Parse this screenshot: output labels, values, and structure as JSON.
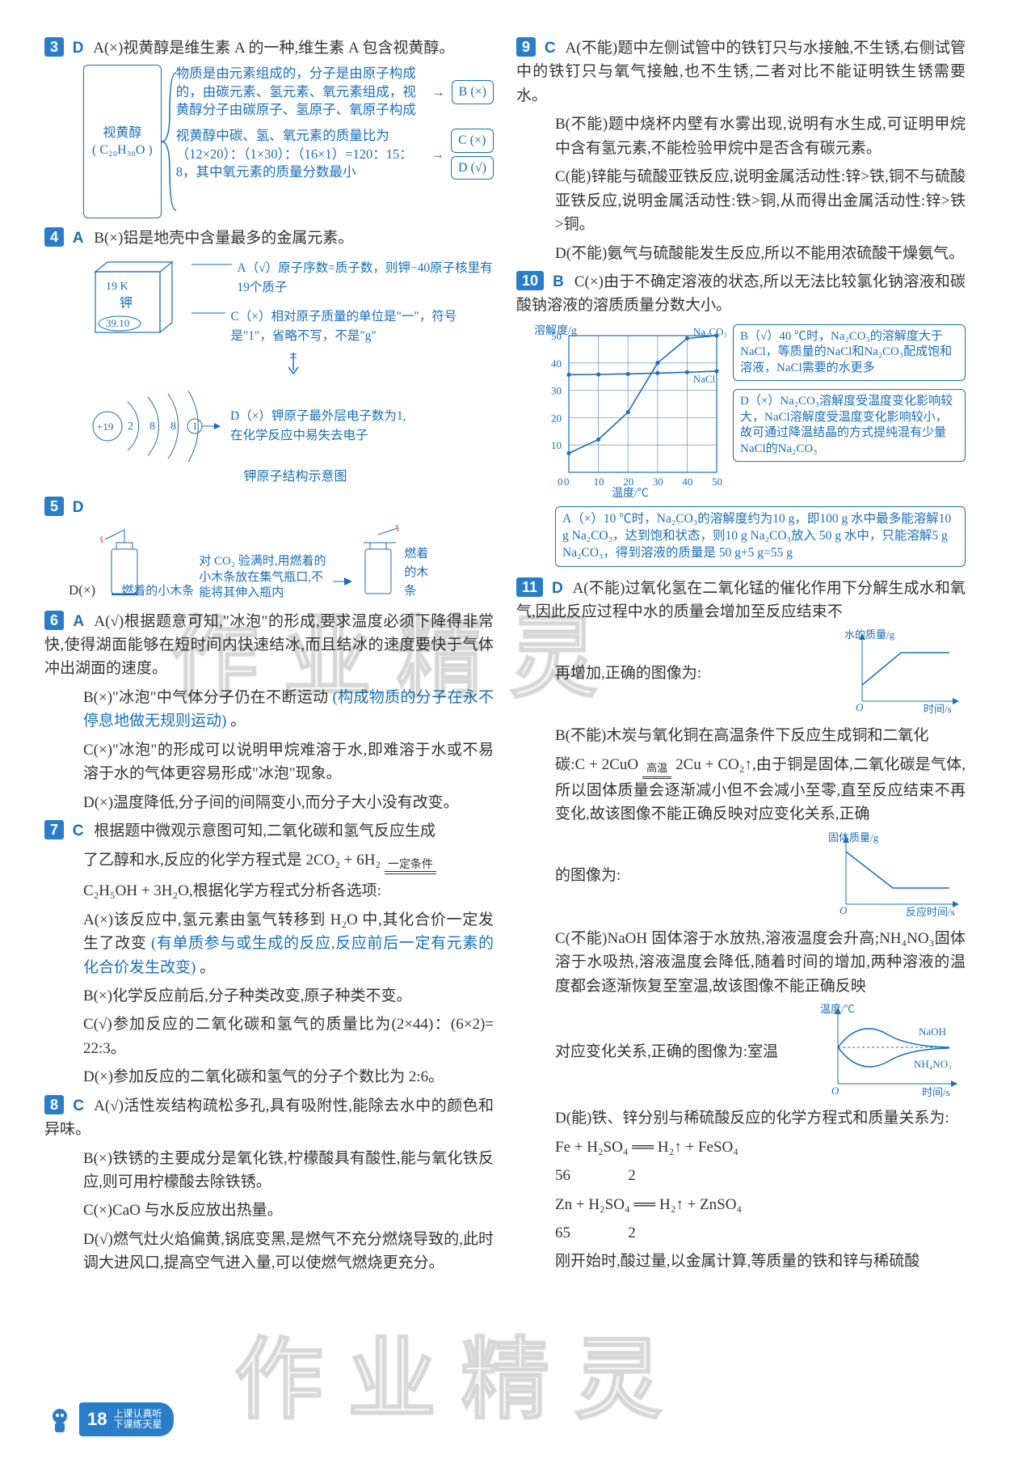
{
  "watermark": "作业精灵",
  "footer": {
    "page": "18",
    "line1": "上课认真听",
    "line2": "下课练天星"
  },
  "left": {
    "q3": {
      "num": "3",
      "ans": "D",
      "head": "A(×)视黄醇是维生素 A 的一种,维生素 A 包含视黄醇。",
      "node_top": "视黄醇",
      "node_bot": "( C₂₀H₃₀O )",
      "r1": "物质是由元素组成的，分子是由原子构成的，由碳元素、氢元素、氧元素组成，视黄醇分子由碳原子、氢原子、氧原子构成",
      "r1res": "B (×)",
      "r2": "视黄醇中碳、氢、氧元素的质量比为（12×20）：（1×30）：（16×1）=120：15：8，其中氧元素的质量分数最小",
      "r2res1": "C (×)",
      "r2res2": "D (√)"
    },
    "q4": {
      "num": "4",
      "ans": "A",
      "head": "B(×)铝是地壳中含量最多的金属元素。",
      "cube_top": "19   K",
      "cube_mid": "钾",
      "cube_bot": "39.10",
      "cA": "A（√）原子序数=质子数，则钾−40原子核里有19个质子",
      "cC": "C（×）相对原子质量的单位是\"一\"，符号是\"1\"，省略不写，不是\"g\"",
      "atom_center": "+19",
      "atom_shells": "2  8  8  ①",
      "atom_note": "D（×）钾原子最外层电子数为1,在化学反应中易失去电子",
      "atom_caption": "钾原子结构示意图"
    },
    "q5": {
      "num": "5",
      "ans": "D",
      "label_left": "D(×)",
      "t1": "燃着的小木条",
      "t2": "对 CO₂ 验满时,用燃着的小木条放在集气瓶口,不能将其伸入瓶内",
      "t3": "燃着的木条"
    },
    "q6": {
      "num": "6",
      "ans": "A",
      "a": "A(√)根据题意可知,\"冰泡\"的形成,要求温度必须下降得非常快,使得湖面能够在短时间内快速结冰,而且结冰的速度要快于气体冲出湖面的速度。",
      "b": "B(×)\"冰泡\"中气体分子仍在不断运动",
      "b_hand": "(构成物质的分子在永不停息地做无规则运动)",
      "b_end": "。",
      "c": "C(×)\"冰泡\"的形成可以说明甲烷难溶于水,即难溶于水或不易溶于水的气体更容易形成\"冰泡\"现象。",
      "d": "D(×)温度降低,分子间的间隔变小,而分子大小没有改变。"
    },
    "q7": {
      "num": "7",
      "ans": "C",
      "head": "根据题中微观示意图可知,二氧化碳和氢气反应生成",
      "eq1_l": "了乙醇和水,反应的化学方程式是 2CO₂ + 6H₂",
      "eq1_cond": "一定条件",
      "eq1_r": "C₂H₅OH + 3H₂O,根据化学方程式分析各选项:",
      "a": "A(×)该反应中,氢元素由氢气转移到 H₂O 中,其化合价一定发生了改变",
      "a_hand": "(有单质参与或生成的反应,反应前后一定有元素的化合价发生改变)",
      "a_end": "。",
      "b": "B(×)化学反应前后,分子种类改变,原子种类不变。",
      "c": "C(√)参加反应的二氧化碳和氢气的质量比为(2×44)：(6×2)= 22:3。",
      "d": "D(×)参加反应的二氧化碳和氢气的分子个数比为 2:6。"
    },
    "q8": {
      "num": "8",
      "ans": "C",
      "a": "A(√)活性炭结构疏松多孔,具有吸附性,能除去水中的颜色和异味。",
      "b": "B(×)铁锈的主要成分是氧化铁,柠檬酸具有酸性,能与氧化铁反应,则可用柠檬酸去除铁锈。",
      "c": "C(×)CaO 与水反应放出热量。",
      "d": "D(√)燃气灶火焰偏黄,锅底变黑,是燃气不充分燃烧导致的,此时调大进风口,提高空气进入量,可以使燃气燃烧更充分。"
    }
  },
  "right": {
    "q9": {
      "num": "9",
      "ans": "C",
      "a": "A(不能)题中左侧试管中的铁钉只与水接触,不生锈,右侧试管中的铁钉只与氧气接触,也不生锈,二者对比不能证明铁生锈需要水。",
      "b": "B(不能)题中烧杯内壁有水雾出现,说明有水生成,可证明甲烷中含有氢元素,不能检验甲烷中是否含有碳元素。",
      "c": "C(能)锌能与硫酸亚铁反应,说明金属活动性:锌>铁,铜不与硫酸亚铁反应,说明金属活动性:铁>铜,从而得出金属活动性:锌>铁>铜。",
      "d": "D(不能)氨气与硫酸能发生反应,所以不能用浓硫酸干燥氨气。"
    },
    "q10": {
      "num": "10",
      "ans": "B",
      "head": "C(×)由于不确定溶液的状态,所以无法比较氯化钠溶液和碳酸钠溶液的溶质质量分数大小。",
      "chart": {
        "ylabel": "溶解度/g",
        "xlabel": "温度/℃",
        "ymax": 50,
        "ystep": 10,
        "xmax": 50,
        "xstep": 10,
        "series1_name": "Na₂CO₃",
        "series2_name": "NaCl",
        "grid_color": "#6aa5d8",
        "line_color": "#1a6fb8",
        "s1_pts": [
          [
            0,
            7
          ],
          [
            10,
            12
          ],
          [
            20,
            22
          ],
          [
            30,
            40
          ],
          [
            40,
            49
          ],
          [
            50,
            50
          ]
        ],
        "s2_pts": [
          [
            0,
            35.7
          ],
          [
            10,
            35.8
          ],
          [
            20,
            36
          ],
          [
            30,
            36.3
          ],
          [
            40,
            36.6
          ],
          [
            50,
            37
          ]
        ]
      },
      "nB": "B（√）40 ℃时，Na₂CO₃的溶解度大于 NaCl，等质量的NaCl和Na₂CO₃配成饱和溶液，NaCl需要的水更多",
      "nD": "D（×）Na₂CO₃溶解度受温度变化影响较大，NaCl溶解度受温度变化影响较小，故可通过降温结晶的方式提纯混有少量NaCl的Na₂CO₃",
      "under": "A（×）10 ℃时，Na₂CO₃的溶解度约为10 g，即100 g 水中最多能溶解10 g Na₂CO₃，达到饱和状态，则10 g Na₂CO₃放入 50 g 水中，只能溶解5 g Na₂CO₃，得到溶液的质量是 50 g+5 g=55 g"
    },
    "q11": {
      "num": "11",
      "ans": "D",
      "a": "A(不能)过氧化氢在二氧化锰的催化作用下分解生成水和氧气,因此反应过程中水的质量会增加至反应结束不",
      "a_graph_y": "水的质量/g",
      "a_graph_x": "时间/s",
      "a_after": "再增加,正确的图像为:",
      "b_head": "B(不能)木炭与氧化铜在高温条件下反应生成铜和二氧化",
      "b_eq_l": "碳:C + 2CuO",
      "b_eq_cond": "高温",
      "b_eq_r": "2Cu + CO₂↑,由于铜是固体,二氧化碳是气体,所以固体质量会逐渐减小但不会减小至零,直至反应结束不再变化,故该图像不能正确反映对应变化关系,正确",
      "b_graph_y": "固体质量/g",
      "b_graph_x": "反应时间/s",
      "b_after": "的图像为:",
      "c": "C(不能)NaOH 固体溶于水放热,溶液温度会升高;NH₄NO₃固体溶于水吸热,溶液温度会降低,随着时间的增加,两种溶液的温度都会逐渐恢复至室温,故该图像不能正确反映",
      "c_graph_y": "温度/℃",
      "c_graph_x": "时间/s",
      "c_left": "对应变化关系,正确的图像为:室温",
      "c_lbl1": "NaOH",
      "c_lbl2": "NH₄NO₃",
      "d_head": "D(能)铁、锌分别与稀硫酸反应的化学方程式和质量关系为:",
      "d_eq1": "Fe + H₂SO₄ ══ H₂↑ + FeSO₄",
      "d_m1": "56               2",
      "d_eq2": "Zn + H₂SO₄ ══ H₂↑ + ZnSO₄",
      "d_m2": "65               2",
      "d_end": "刚开始时,酸过量,以金属计算,等质量的铁和锌与稀硫酸"
    }
  }
}
